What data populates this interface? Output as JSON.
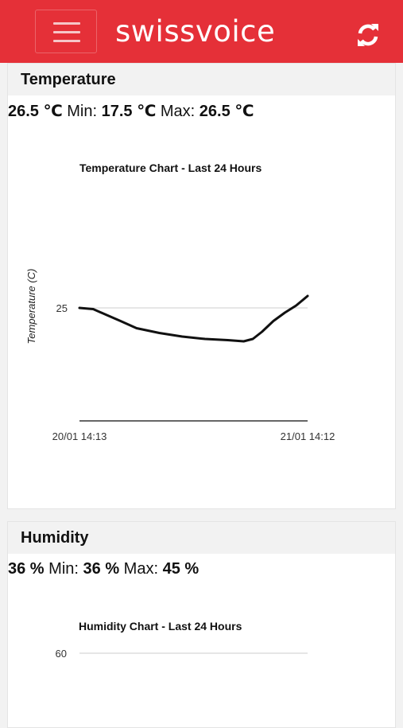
{
  "header": {
    "brand": "swissvoice",
    "menu_icon": "hamburger-icon",
    "refresh_icon": "refresh-icon",
    "accent_color": "#e53038"
  },
  "temperature": {
    "title": "Temperature",
    "current": "26.5 ℃",
    "min_label": "Min:",
    "min": "17.5 ℃",
    "max_label": "Max:",
    "max": "26.5 ℃",
    "chart_title": "Temperature Chart - Last 24 Hours"
  },
  "humidity": {
    "title": "Humidity",
    "current": "36 %",
    "min_label": "Min:",
    "min": "36 %",
    "max_label": "Max:",
    "max": "45 %",
    "chart_title": "Humidity Chart - Last 24 Hours"
  },
  "chart_data": [
    {
      "type": "line",
      "title": "Temperature Chart - Last 24 Hours",
      "xlabel": "",
      "ylabel": "Temperature (C)",
      "x_ticks": [
        "20/01 14:13",
        "21/01 14:12"
      ],
      "y_ticks": [
        25
      ],
      "ylim": [
        20,
        26.5
      ],
      "grid": true,
      "series": [
        {
          "x": [
            0,
            0.06,
            0.12,
            0.18,
            0.25,
            0.35,
            0.45,
            0.55,
            0.65,
            0.72,
            0.76,
            0.8,
            0.85,
            0.9,
            0.95,
            1.0
          ],
          "values": [
            25.0,
            24.95,
            24.7,
            24.45,
            24.15,
            23.95,
            23.8,
            23.7,
            23.65,
            23.6,
            23.7,
            24.0,
            24.45,
            24.8,
            25.1,
            25.5
          ]
        }
      ]
    },
    {
      "type": "line",
      "title": "Humidity Chart - Last 24 Hours",
      "xlabel": "",
      "ylabel": "",
      "y_ticks": [
        60
      ],
      "grid": true,
      "series": []
    }
  ]
}
